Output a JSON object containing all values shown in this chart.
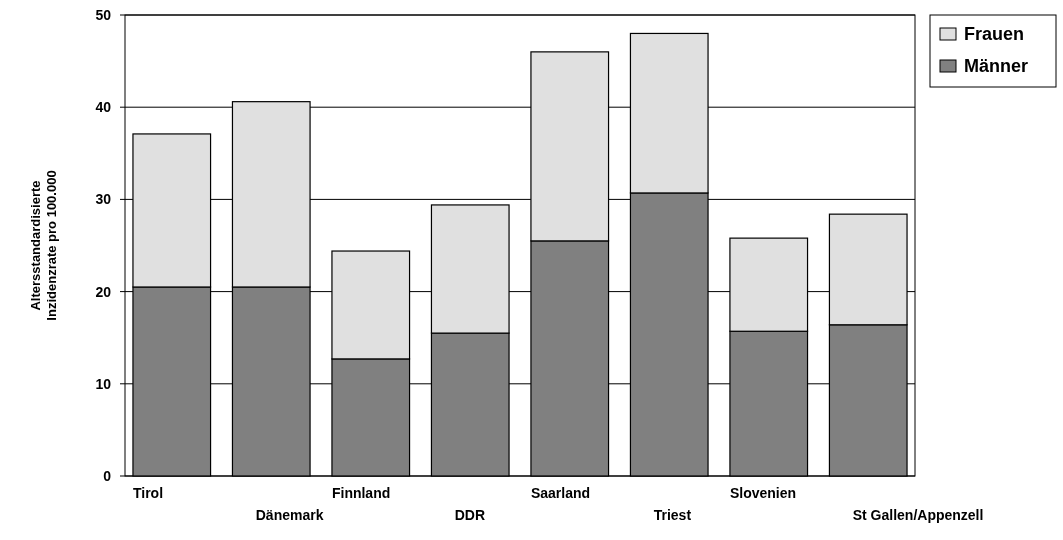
{
  "chart_data": {
    "type": "bar",
    "stacked": true,
    "ylabel": "Altersstandardisierte\nInzidenzrate pro 100.000",
    "categories": [
      "Tirol",
      "Dänemark",
      "Finnland",
      "DDR",
      "Saarland",
      "Triest",
      "Slovenien",
      "St Gallen/Appenzell"
    ],
    "series": [
      {
        "name": "Männer",
        "color": "#808080",
        "values": [
          20.5,
          20.5,
          12.7,
          15.5,
          25.5,
          30.7,
          15.7,
          16.4
        ]
      },
      {
        "name": "Frauen",
        "color": "#e0e0e0",
        "values": [
          16.6,
          20.1,
          11.7,
          13.9,
          20.5,
          17.3,
          10.1,
          12.0
        ]
      }
    ],
    "ylim": [
      0,
      50
    ],
    "yticks": [
      0,
      10,
      20,
      30,
      40,
      50
    ],
    "grid": "y",
    "legend": "top right"
  }
}
